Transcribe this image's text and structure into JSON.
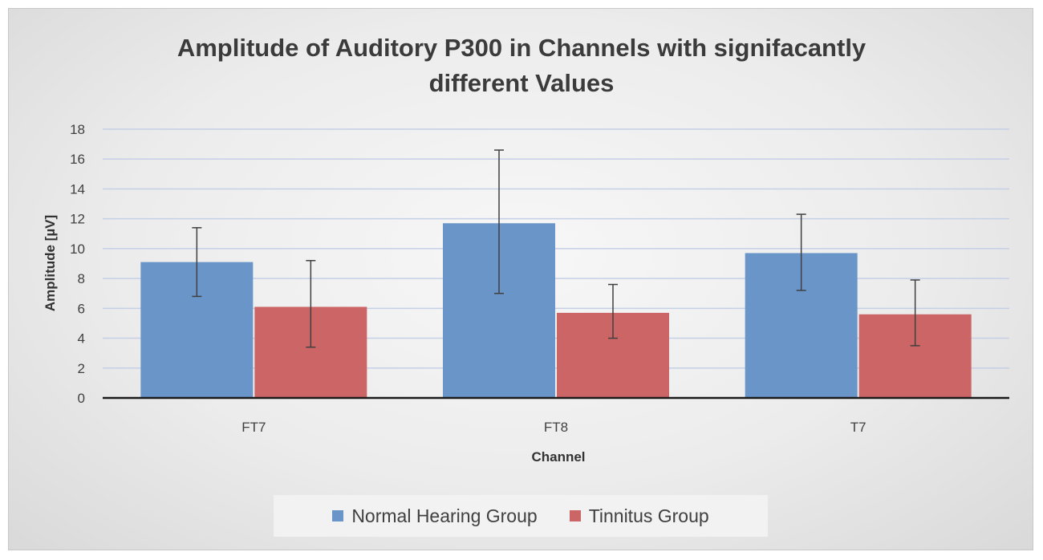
{
  "chart_data": {
    "type": "bar",
    "title_lines": [
      "Amplitude of Auditory P300 in Channels with signifacantly",
      "different Values"
    ],
    "xlabel": "Channel",
    "ylabel": "Amplitude [µV]",
    "categories": [
      "FT7",
      "FT8",
      "T7"
    ],
    "ylim": [
      0,
      18
    ],
    "yticks": [
      0,
      2,
      4,
      6,
      8,
      10,
      12,
      14,
      16,
      18
    ],
    "grid": true,
    "legend_position": "bottom",
    "series": [
      {
        "name": "Normal Hearing Group",
        "color": "#6a95c9",
        "values": [
          9.1,
          11.7,
          9.7
        ],
        "error_low": [
          6.8,
          7.0,
          7.2
        ],
        "error_high": [
          11.4,
          16.6,
          12.3
        ]
      },
      {
        "name": "Tinnitus Group",
        "color": "#cc6565",
        "values": [
          6.1,
          5.7,
          5.6
        ],
        "error_low": [
          3.4,
          4.0,
          3.5
        ],
        "error_high": [
          9.2,
          7.6,
          7.9
        ]
      }
    ]
  }
}
